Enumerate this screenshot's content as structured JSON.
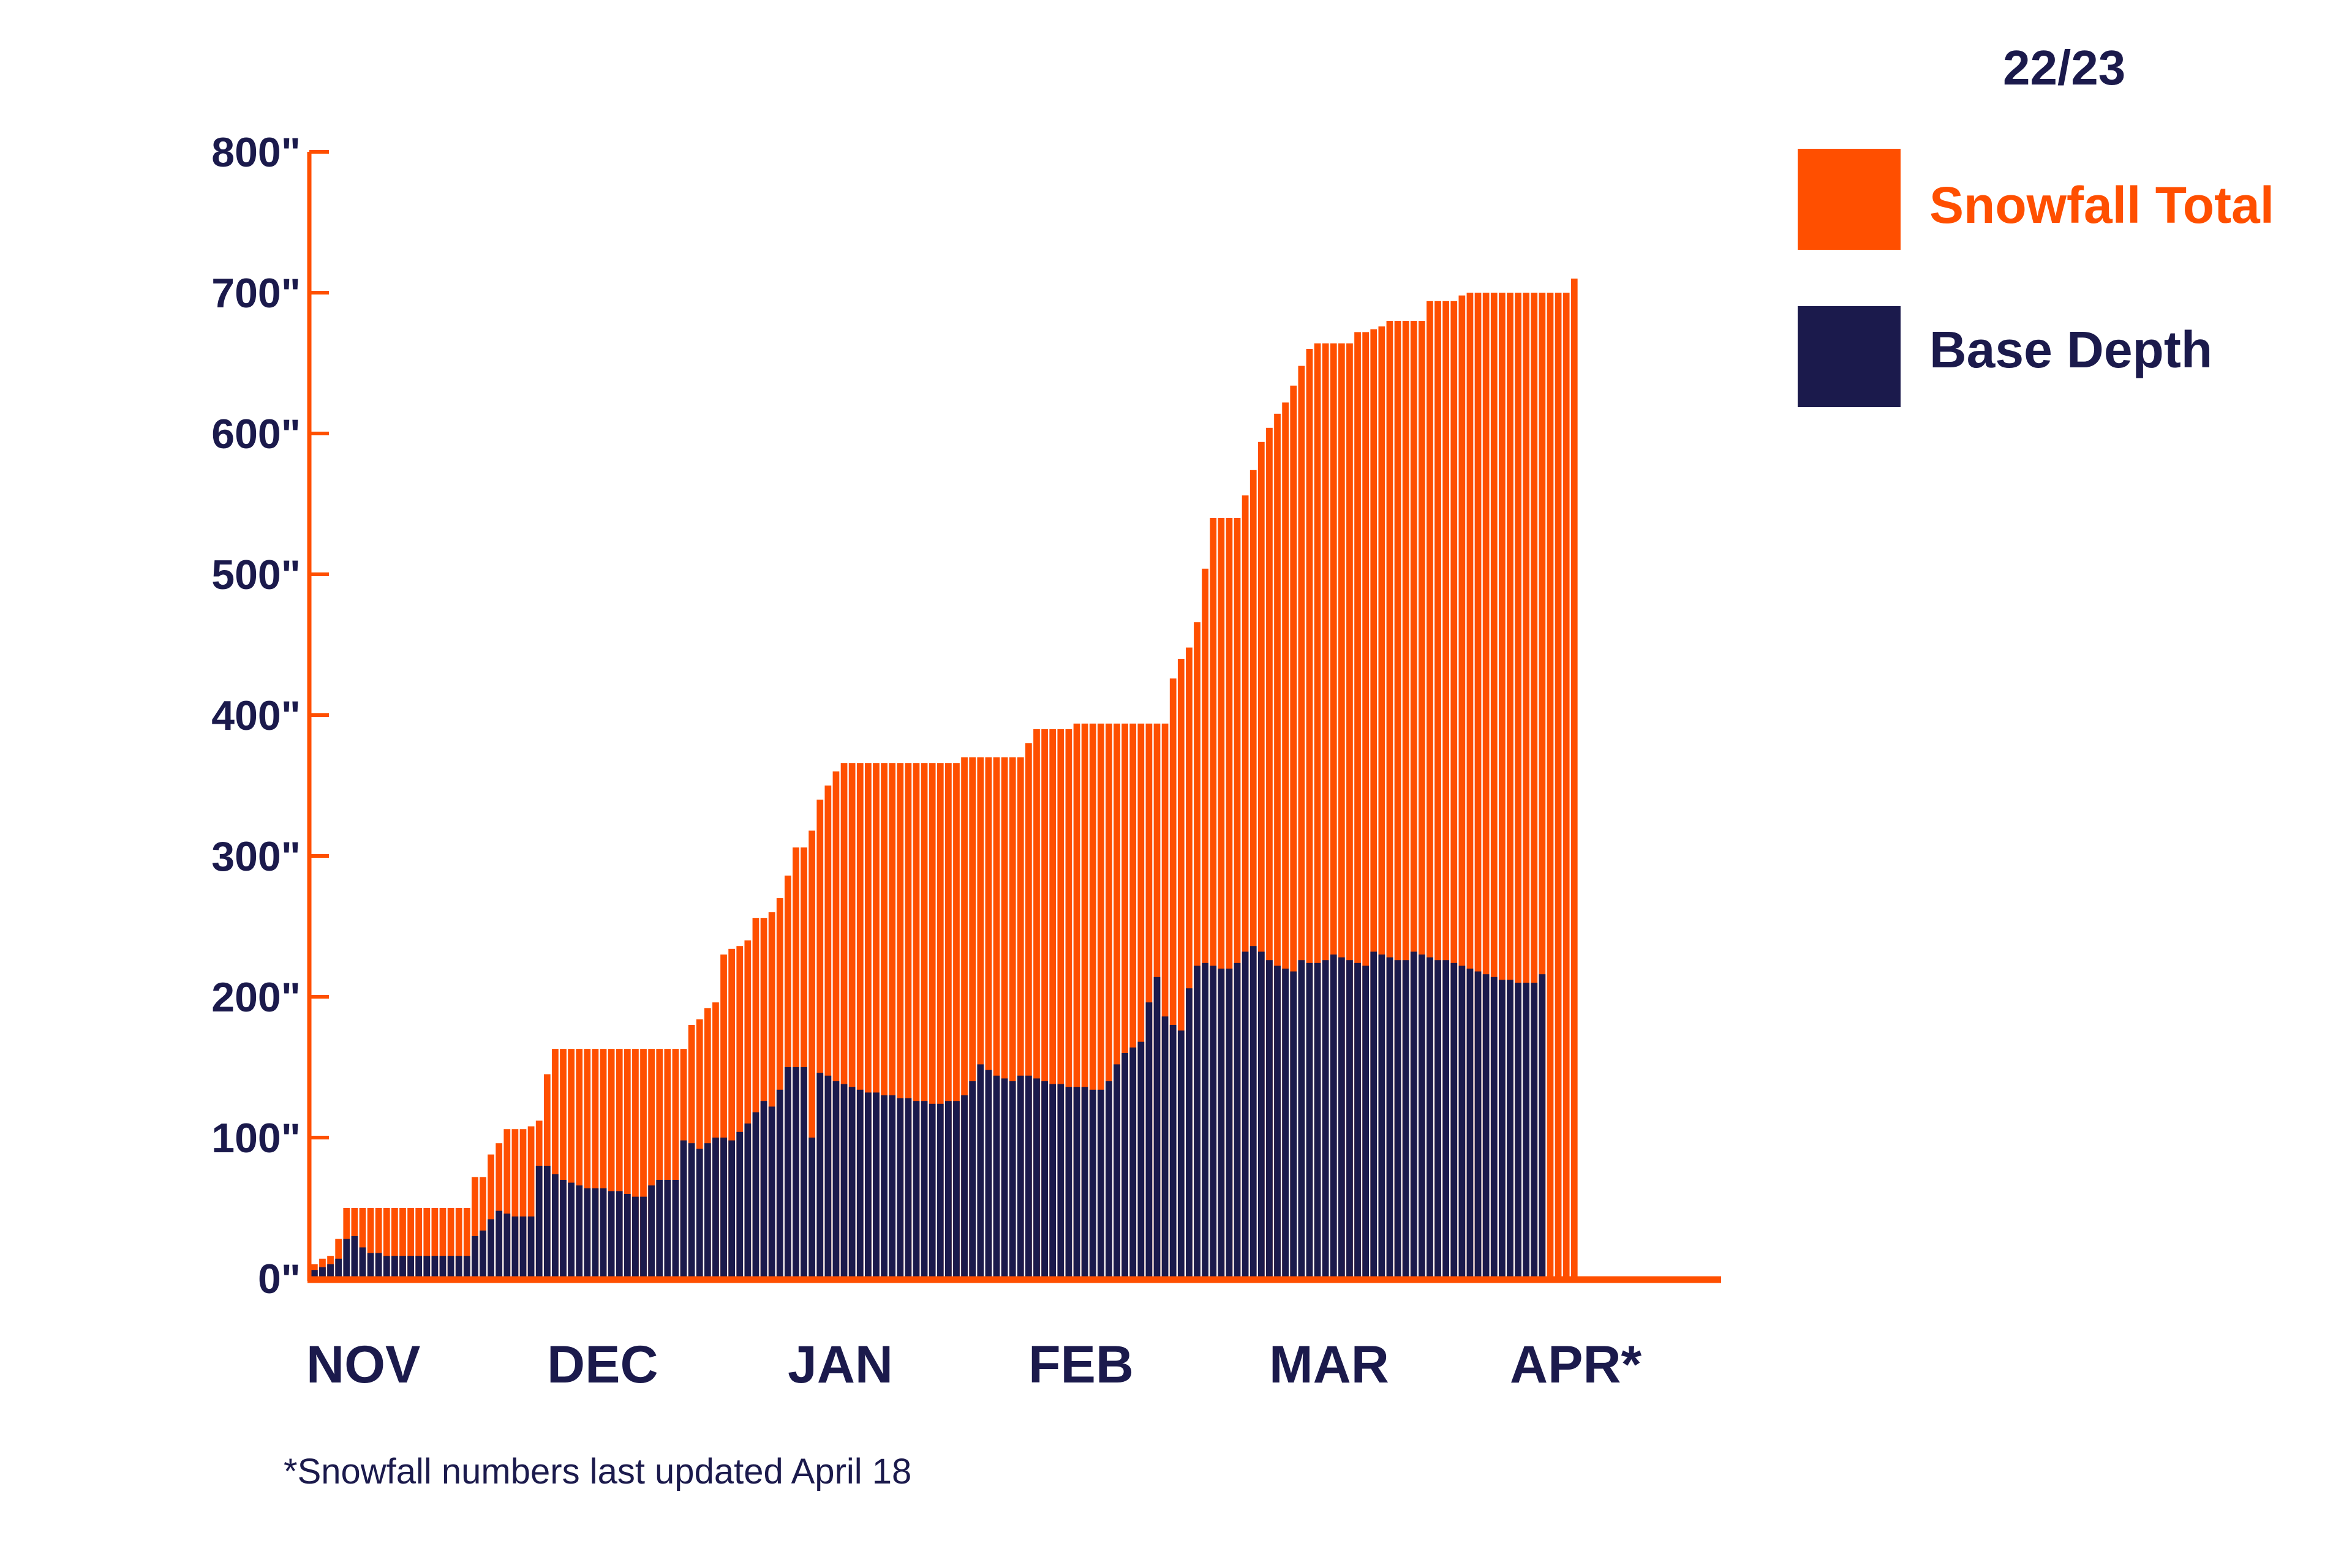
{
  "colors": {
    "snowfall": "#ff4f00",
    "base": "#1b1a4c",
    "axis": "#ff4f00",
    "text": "#1b1a4c",
    "background": "#ffffff"
  },
  "chart_data": {
    "type": "bar",
    "title": "22/23",
    "xlabel": "",
    "ylabel": "",
    "ylim": [
      0,
      800
    ],
    "yticks": [
      0,
      100,
      200,
      300,
      400,
      500,
      600,
      700,
      800
    ],
    "ytick_labels": [
      "0\"",
      "100\"",
      "200\"",
      "300\"",
      "400\"",
      "500\"",
      "600\"",
      "700\"",
      "800\""
    ],
    "months": [
      {
        "label": "NOV",
        "start_day": 0
      },
      {
        "label": "DEC",
        "start_day": 30
      },
      {
        "label": "JAN",
        "start_day": 61
      },
      {
        "label": "FEB",
        "start_day": 92
      },
      {
        "label": "MAR",
        "start_day": 120
      },
      {
        "label": "APR*",
        "start_day": 151
      }
    ],
    "x_domain_days": [
      0,
      181
    ],
    "x_unit": "days from November 1",
    "legend_position": "top-right",
    "legend": [
      {
        "key": "snowfall",
        "label": "Snowfall Total"
      },
      {
        "key": "base",
        "label": "Base Depth"
      }
    ],
    "grid": false,
    "series": [
      {
        "key": "snowfall",
        "name": "Snowfall Total",
        "values": [
          10,
          14,
          16,
          28,
          50,
          50,
          50,
          50,
          50,
          50,
          50,
          50,
          50,
          50,
          50,
          50,
          50,
          50,
          50,
          50,
          72,
          72,
          88,
          96,
          106,
          106,
          106,
          108,
          112,
          145,
          163,
          163,
          163,
          163,
          163,
          163,
          163,
          163,
          163,
          163,
          163,
          163,
          163,
          163,
          163,
          163,
          163,
          180,
          184,
          192,
          196,
          230,
          234,
          236,
          240,
          256,
          256,
          260,
          270,
          286,
          306,
          306,
          318,
          340,
          350,
          360,
          366,
          366,
          366,
          366,
          366,
          366,
          366,
          366,
          366,
          366,
          366,
          366,
          366,
          366,
          366,
          370,
          370,
          370,
          370,
          370,
          370,
          370,
          370,
          380,
          390,
          390,
          390,
          390,
          390,
          394,
          394,
          394,
          394,
          394,
          394,
          394,
          394,
          394,
          394,
          394,
          394,
          426,
          440,
          448,
          466,
          504,
          540,
          540,
          540,
          540,
          556,
          574,
          594,
          604,
          614,
          622,
          634,
          648,
          660,
          664,
          664,
          664,
          664,
          664,
          672,
          672,
          674,
          676,
          680,
          680,
          680,
          680,
          680,
          694,
          694,
          694,
          694,
          698,
          700,
          700,
          700,
          700,
          700,
          700,
          700,
          700,
          700,
          700,
          700,
          700,
          700,
          710
        ]
      },
      {
        "key": "base",
        "name": "Base Depth",
        "values": [
          6,
          8,
          10,
          14,
          28,
          30,
          22,
          18,
          18,
          16,
          16,
          16,
          16,
          16,
          16,
          16,
          16,
          16,
          16,
          16,
          30,
          34,
          42,
          48,
          46,
          44,
          44,
          44,
          80,
          80,
          74,
          70,
          68,
          66,
          64,
          64,
          64,
          62,
          62,
          60,
          58,
          58,
          66,
          70,
          70,
          70,
          98,
          96,
          92,
          96,
          100,
          100,
          98,
          104,
          110,
          118,
          126,
          122,
          134,
          150,
          150,
          150,
          100,
          146,
          144,
          140,
          138,
          136,
          134,
          132,
          132,
          130,
          130,
          128,
          128,
          126,
          126,
          124,
          124,
          126,
          126,
          130,
          140,
          152,
          148,
          144,
          142,
          140,
          144,
          144,
          142,
          140,
          138,
          138,
          136,
          136,
          136,
          134,
          134,
          140,
          152,
          160,
          164,
          168,
          196,
          214,
          186,
          180,
          176,
          206,
          222,
          224,
          222,
          220,
          220,
          224,
          232,
          236,
          232,
          226,
          222,
          220,
          218,
          226,
          224,
          224,
          226,
          230,
          228,
          226,
          224,
          222,
          232,
          230,
          228,
          226,
          226,
          232,
          230,
          228,
          226,
          226,
          224,
          222,
          220,
          218,
          216,
          214,
          212,
          212,
          210,
          210,
          210,
          216
        ]
      }
    ]
  },
  "footnote": "*Snowfall numbers last updated April 18"
}
